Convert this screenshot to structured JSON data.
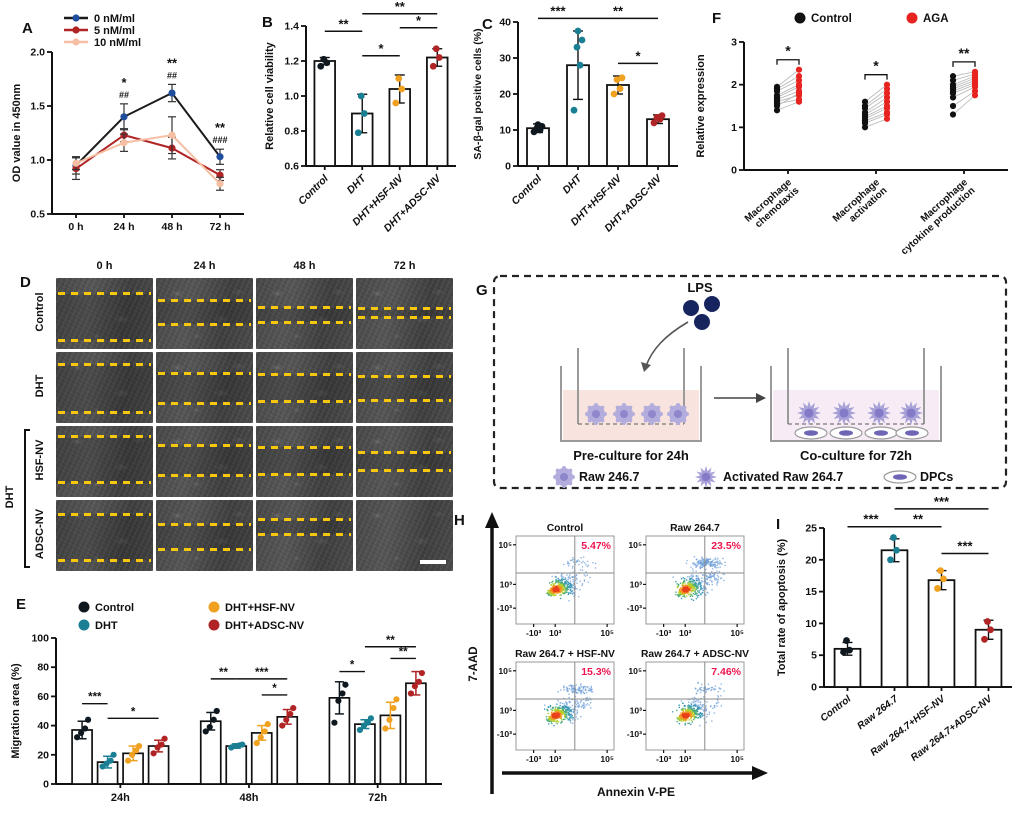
{
  "figure": {
    "background": "#ffffff"
  },
  "colors": {
    "control_dot": "#10181f",
    "dht_dot": "#1b7f93",
    "hsf_dot": "#efa11f",
    "adsc_dot": "#b02425",
    "aga_red": "#e8231f",
    "blue_marker": "#1f4e9c",
    "salmon": "#f6bfa3",
    "percent_pink": "#ed1650",
    "wound_dash_yellow": "#f6c70a"
  },
  "panels": {
    "A": {
      "label": "A",
      "chart_data": {
        "type": "line",
        "x": [
          "0 h",
          "24 h",
          "48 h",
          "72 h"
        ],
        "ylabel": "OD value in 450nm",
        "ylim": [
          0.5,
          2.0
        ],
        "yticks": [
          "0.5",
          "1.0",
          "1.5",
          "2.0"
        ],
        "series": [
          {
            "name": "0 nM/ml",
            "marker": "#1f4e9c",
            "line": "#1a1a1a",
            "values": [
              0.95,
              1.4,
              1.62,
              1.03
            ],
            "err": [
              0.08,
              0.12,
              0.08,
              0.07
            ]
          },
          {
            "name": "5 nM/ml",
            "marker": "#b02425",
            "line": "#b02425",
            "values": [
              0.92,
              1.23,
              1.11,
              0.86
            ],
            "err": [
              0.1,
              0.06,
              0.1,
              0.05
            ]
          },
          {
            "name": "10 nM/ml",
            "marker": "#f6bfa3",
            "line": "#f6bfa3",
            "values": [
              0.97,
              1.16,
              1.23,
              0.78
            ],
            "err": [
              0.06,
              0.08,
              0.17,
              0.06
            ]
          }
        ],
        "annotations": [
          {
            "xi": 1,
            "lines": [
              "*",
              "##"
            ]
          },
          {
            "xi": 2,
            "lines": [
              "**",
              "##"
            ]
          },
          {
            "xi": 3,
            "lines": [
              "**",
              "###"
            ]
          }
        ]
      }
    },
    "B": {
      "label": "B",
      "chart_data": {
        "type": "bar",
        "ylabel": "Relative cell viability",
        "ylim": [
          0.6,
          1.4
        ],
        "yticks": [
          "0.6",
          "0.8",
          "1.0",
          "1.2",
          "1.4"
        ],
        "categories": [
          "Control",
          "DHT",
          "DHT+HSF-NV",
          "DHT+ADSC-NV"
        ],
        "values": [
          1.2,
          0.9,
          1.04,
          1.22
        ],
        "errors": [
          0.02,
          0.11,
          0.08,
          0.05
        ],
        "dots": [
          [
            1.17,
            1.19,
            1.21
          ],
          [
            0.79,
            0.9,
            1.0
          ],
          [
            0.96,
            1.04,
            1.1
          ],
          [
            1.17,
            1.22,
            1.27
          ]
        ],
        "dot_colors": [
          "#10181f",
          "#1b7f93",
          "#efa11f",
          "#b02425"
        ],
        "sig": [
          {
            "a": 0,
            "b": 1,
            "label": "**",
            "y": 1.37
          },
          {
            "a": 1,
            "b": 2,
            "label": "*",
            "y": 1.23
          },
          {
            "a": 1,
            "b": 3,
            "label": "**",
            "y": 1.47
          },
          {
            "a": 2,
            "b": 3,
            "label": "*",
            "y": 1.39
          }
        ]
      }
    },
    "C": {
      "label": "C",
      "chart_data": {
        "type": "bar",
        "ylabel": "SA-β-gal positive cells (%)",
        "ylim": [
          0,
          40
        ],
        "yticks": [
          "0",
          "10",
          "20",
          "30",
          "40"
        ],
        "categories": [
          "Control",
          "DHT",
          "DHT+HSF-NV",
          "DHT+ADSC-NV"
        ],
        "values": [
          10.5,
          28,
          22.5,
          13
        ],
        "errors": [
          1.2,
          9.5,
          2.5,
          1.2
        ],
        "dots": [
          [
            9.5,
            10,
            10.5,
            11,
            11.5
          ],
          [
            15.5,
            28,
            33,
            35,
            37.5
          ],
          [
            20,
            21.5,
            24,
            24.5
          ],
          [
            12,
            13,
            13.5,
            14
          ]
        ],
        "dot_colors": [
          "#10181f",
          "#1b7f93",
          "#efa11f",
          "#b02425"
        ],
        "sig": [
          {
            "a": 0,
            "b": 1,
            "label": "***",
            "y": 41
          },
          {
            "a": 1,
            "b": 3,
            "label": "**",
            "y": 41
          },
          {
            "a": 2,
            "b": 3,
            "label": "*",
            "y": 28.5
          }
        ]
      }
    },
    "F": {
      "label": "F",
      "chart_data": {
        "type": "paired",
        "legend": [
          {
            "name": "Control",
            "color": "#111111"
          },
          {
            "name": "AGA",
            "color": "#e8231f"
          }
        ],
        "ylabel": "Relative expression",
        "ylim": [
          0,
          3
        ],
        "yticks": [
          "0",
          "1",
          "2",
          "3"
        ],
        "categories": [
          "Macrophage\nchemotaxis",
          "Macrophage\nactivation",
          "Macrophage\ncytokine production"
        ],
        "pairs": [
          [
            [
              1.95,
              2.35
            ],
            [
              1.9,
              2.2
            ],
            [
              1.85,
              2.1
            ],
            [
              1.75,
              2.0
            ],
            [
              1.7,
              1.95
            ],
            [
              1.65,
              1.85
            ],
            [
              1.6,
              1.75
            ],
            [
              1.55,
              1.65
            ],
            [
              1.5,
              1.8
            ],
            [
              1.4,
              1.6
            ]
          ],
          [
            [
              1.6,
              2.0
            ],
            [
              1.5,
              1.9
            ],
            [
              1.45,
              1.8
            ],
            [
              1.35,
              1.7
            ],
            [
              1.3,
              1.6
            ],
            [
              1.25,
              1.5
            ],
            [
              1.2,
              1.45
            ],
            [
              1.15,
              1.35
            ],
            [
              1.1,
              1.3
            ],
            [
              1.0,
              1.2
            ]
          ],
          [
            [
              2.2,
              2.3
            ],
            [
              2.1,
              2.25
            ],
            [
              2.0,
              2.2
            ],
            [
              1.95,
              2.15
            ],
            [
              1.9,
              2.1
            ],
            [
              1.85,
              2.05
            ],
            [
              1.8,
              2.0
            ],
            [
              1.7,
              1.95
            ],
            [
              1.5,
              1.85
            ],
            [
              1.3,
              1.75
            ]
          ]
        ],
        "sig": [
          "*",
          "*",
          "**"
        ]
      }
    },
    "D": {
      "label": "D",
      "col_headers": [
        "0 h",
        "24 h",
        "48 h",
        "72 h"
      ],
      "row_labels": [
        "Control",
        "DHT",
        "HSF-NV",
        "ADSC-NV"
      ],
      "bracket_label": "DHT",
      "wound_lines": [
        [
          [
            22,
            88
          ],
          [
            32,
            65
          ],
          [
            42,
            62
          ],
          [
            43,
            55
          ]
        ],
        [
          [
            18,
            85
          ],
          [
            30,
            72
          ],
          [
            32,
            70
          ],
          [
            35,
            68
          ]
        ],
        [
          [
            15,
            80
          ],
          [
            28,
            70
          ],
          [
            30,
            68
          ],
          [
            38,
            62
          ]
        ],
        [
          [
            20,
            85
          ],
          [
            35,
            70
          ],
          [
            28,
            48
          ],
          null
        ]
      ]
    },
    "G": {
      "label": "G",
      "lps_label": "LPS",
      "dish1_label": "Pre-culture for 24h",
      "dish2_label": "Co-culture for 72h",
      "legend": [
        {
          "icon": "raw-cell-icon",
          "name": "Raw 246.7"
        },
        {
          "icon": "activated-cell-icon",
          "name": "Activated Raw 264.7"
        },
        {
          "icon": "dpc-cell-icon",
          "name": "DPCs"
        }
      ]
    },
    "E": {
      "label": "E",
      "chart_data": {
        "type": "groupbar",
        "legend": [
          {
            "name": "Control",
            "color": "#10181f"
          },
          {
            "name": "DHT",
            "color": "#1b7f93"
          },
          {
            "name": "DHT+HSF-NV",
            "color": "#efa11f"
          },
          {
            "name": "DHT+ADSC-NV",
            "color": "#b02425"
          }
        ],
        "ylabel": "Migration area (%)",
        "ylim": [
          0,
          100
        ],
        "yticks": [
          "0",
          "20",
          "40",
          "60",
          "80",
          "100"
        ],
        "groups": [
          "24h",
          "48h",
          "72h"
        ],
        "series": [
          {
            "name": "Control",
            "color": "#10181f",
            "values": [
              37,
              43,
              59
            ],
            "err": [
              6,
              6,
              11
            ],
            "dots": [
              [
                32,
                35,
                38,
                44
              ],
              [
                36,
                39,
                44,
                50
              ],
              [
                42,
                57,
                62,
                68
              ]
            ]
          },
          {
            "name": "DHT",
            "color": "#1b7f93",
            "values": [
              15,
              26,
              41
            ],
            "err": [
              4,
              1.5,
              3
            ],
            "dots": [
              [
                12,
                14,
                16,
                20
              ],
              [
                25,
                26,
                26.5,
                27
              ],
              [
                37,
                40,
                42,
                45
              ]
            ]
          },
          {
            "name": "DHT+HSF-NV",
            "color": "#efa11f",
            "values": [
              21,
              35,
              47
            ],
            "err": [
              5,
              5,
              9
            ],
            "dots": [
              [
                16,
                20,
                23,
                26
              ],
              [
                28,
                32,
                36,
                41
              ],
              [
                38,
                44,
                52,
                58
              ]
            ]
          },
          {
            "name": "DHT+ADSC-NV",
            "color": "#b02425",
            "values": [
              26,
              46,
              69
            ],
            "err": [
              4,
              5,
              8
            ],
            "dots": [
              [
                21,
                25,
                27,
                31
              ],
              [
                40,
                44,
                48,
                52
              ],
              [
                62,
                67,
                70,
                76
              ]
            ]
          }
        ],
        "sig": [
          {
            "g": 0,
            "a": 0,
            "b": 1,
            "label": "***",
            "y": 55
          },
          {
            "g": 0,
            "a": 1,
            "b": 3,
            "label": "*",
            "y": 45
          },
          {
            "g": 1,
            "a": 0,
            "b": 1,
            "label": "**",
            "y": 72
          },
          {
            "g": 1,
            "a": 1,
            "b": 3,
            "label": "***",
            "y": 72
          },
          {
            "g": 1,
            "a": 2,
            "b": 3,
            "label": "*",
            "y": 61
          },
          {
            "g": 2,
            "a": 0,
            "b": 1,
            "label": "*",
            "y": 77
          },
          {
            "g": 2,
            "a": 1,
            "b": 3,
            "label": "**",
            "y": 94
          },
          {
            "g": 2,
            "a": 2,
            "b": 3,
            "label": "**",
            "y": 86
          }
        ]
      }
    },
    "H": {
      "label": "H",
      "chart_data": {
        "type": "flow",
        "xlabel": "Annexin V-PE",
        "ylabel": "7-AAD",
        "yticks": [
          "10⁵",
          "10³",
          "-10³"
        ],
        "xticks": [
          "-10³",
          "10³",
          "10⁵"
        ],
        "percent_color": "#ed1650",
        "plots": [
          {
            "title": "Control",
            "percent": "5.47%"
          },
          {
            "title": "Raw 264.7",
            "percent": "23.5%"
          },
          {
            "title": "Raw 264.7 + HSF-NV",
            "percent": "15.3%"
          },
          {
            "title": "Raw 264.7 + ADSC-NV",
            "percent": "7.46%"
          }
        ]
      }
    },
    "I": {
      "label": "I",
      "chart_data": {
        "type": "bar",
        "ylabel": "Total rate of apoptosis (%)",
        "ylim": [
          0,
          25
        ],
        "yticks": [
          "0",
          "5",
          "10",
          "15",
          "20",
          "25"
        ],
        "categories": [
          "Control",
          "Raw 264.7",
          "Raw 264.7+HSF-NV",
          "Raw 264.7+ADSC-NV"
        ],
        "values": [
          6,
          21.5,
          16.8,
          9
        ],
        "errors": [
          1,
          1.8,
          1.5,
          1.5
        ],
        "dots": [
          [
            5.5,
            5.8,
            7.3
          ],
          [
            20,
            21.5,
            23.5
          ],
          [
            15.5,
            17,
            18.3
          ],
          [
            7.5,
            9,
            10.3
          ]
        ],
        "dot_colors": [
          "#10181f",
          "#1b7f93",
          "#efa11f",
          "#b02425"
        ],
        "sig": [
          {
            "a": 0,
            "b": 1,
            "label": "***",
            "y": 25.2
          },
          {
            "a": 1,
            "b": 2,
            "label": "**",
            "y": 25.2
          },
          {
            "a": 1,
            "b": 3,
            "label": "***",
            "y": 28
          },
          {
            "a": 2,
            "b": 3,
            "label": "***",
            "y": 21
          }
        ]
      }
    }
  }
}
